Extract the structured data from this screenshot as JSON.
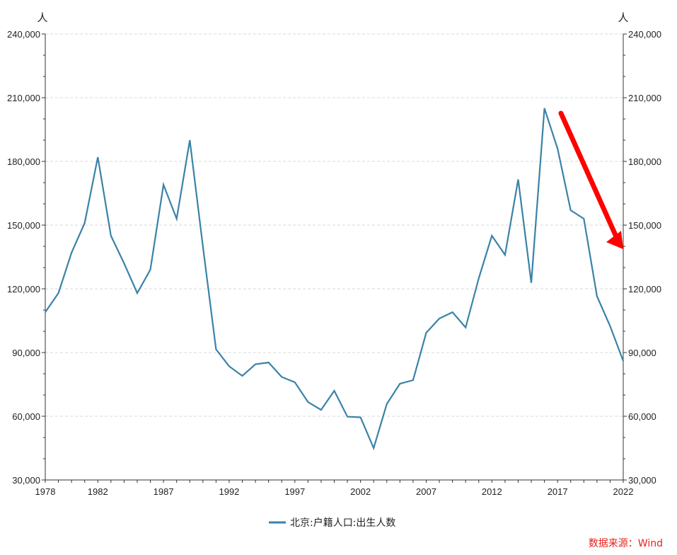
{
  "chart_data": {
    "type": "line",
    "title": "",
    "y_unit_left": "人",
    "y_unit_right": "人",
    "ylim": [
      30000,
      240000
    ],
    "y_ticks": [
      30000,
      60000,
      90000,
      120000,
      150000,
      180000,
      210000,
      240000
    ],
    "y_tick_labels": [
      "30,000",
      "60,000",
      "90,000",
      "120,000",
      "150,000",
      "180,000",
      "210,000",
      "240,000"
    ],
    "xlim": [
      1978,
      2022
    ],
    "x_ticks": [
      1978,
      1982,
      1987,
      1992,
      1997,
      2002,
      2007,
      2012,
      2017,
      2022
    ],
    "x_tick_labels": [
      "1978",
      "1982",
      "1987",
      "1992",
      "1997",
      "2002",
      "2007",
      "2012",
      "2017",
      "2022"
    ],
    "grid": "horizontal dashed",
    "legend_position": "bottom-center",
    "x": [
      1978,
      1979,
      1980,
      1981,
      1982,
      1983,
      1984,
      1985,
      1986,
      1987,
      1988,
      1989,
      1990,
      1991,
      1992,
      1993,
      1994,
      1995,
      1996,
      1997,
      1998,
      1999,
      2000,
      2001,
      2002,
      2003,
      2004,
      2005,
      2006,
      2007,
      2008,
      2009,
      2010,
      2011,
      2012,
      2013,
      2014,
      2015,
      2016,
      2017,
      2018,
      2019,
      2020,
      2021,
      2022
    ],
    "series": [
      {
        "name": "北京:户籍人口:出生人数",
        "color": "#3a82a8",
        "values": [
          109000,
          118000,
          137000,
          151000,
          182000,
          145000,
          132000,
          118000,
          129000,
          169000,
          153000,
          190000,
          140000,
          91500,
          83500,
          79000,
          84500,
          85300,
          78500,
          76000,
          66700,
          63000,
          72000,
          59800,
          59500,
          45000,
          65800,
          75300,
          77000,
          99300,
          106000,
          109000,
          101800,
          125000,
          145000,
          136000,
          171500,
          122800,
          205000,
          186000,
          157000,
          153000,
          116500,
          102500,
          86000
        ]
      }
    ],
    "annotation": {
      "type": "arrow",
      "color": "#ff0000",
      "meaning": "downward trend after 2016"
    },
    "source": "数据来源：Wind",
    "source_color": "#e8201a"
  }
}
